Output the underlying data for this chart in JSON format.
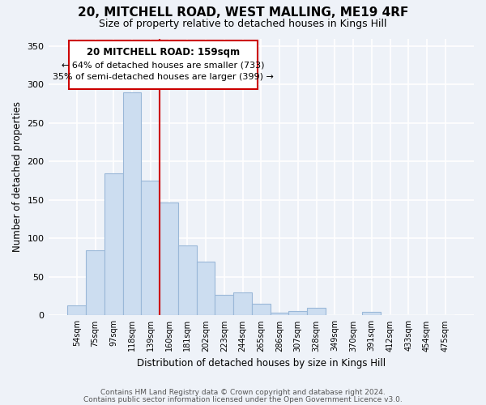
{
  "title": "20, MITCHELL ROAD, WEST MALLING, ME19 4RF",
  "subtitle": "Size of property relative to detached houses in Kings Hill",
  "xlabel": "Distribution of detached houses by size in Kings Hill",
  "ylabel": "Number of detached properties",
  "bar_labels": [
    "54sqm",
    "75sqm",
    "97sqm",
    "118sqm",
    "139sqm",
    "160sqm",
    "181sqm",
    "202sqm",
    "223sqm",
    "244sqm",
    "265sqm",
    "286sqm",
    "307sqm",
    "328sqm",
    "349sqm",
    "370sqm",
    "391sqm",
    "412sqm",
    "433sqm",
    "454sqm",
    "475sqm"
  ],
  "bar_values": [
    13,
    85,
    185,
    290,
    175,
    147,
    91,
    70,
    27,
    30,
    15,
    4,
    6,
    10,
    0,
    0,
    5,
    0,
    0,
    0,
    0
  ],
  "bar_color": "#ccddf0",
  "bar_edge_color": "#9ab8d8",
  "vline_color": "#cc0000",
  "annotation_title": "20 MITCHELL ROAD: 159sqm",
  "annotation_line1": "← 64% of detached houses are smaller (733)",
  "annotation_line2": "35% of semi-detached houses are larger (399) →",
  "annotation_box_color": "#ffffff",
  "annotation_box_edge": "#cc0000",
  "ylim": [
    0,
    360
  ],
  "yticks": [
    0,
    50,
    100,
    150,
    200,
    250,
    300,
    350
  ],
  "footer1": "Contains HM Land Registry data © Crown copyright and database right 2024.",
  "footer2": "Contains public sector information licensed under the Open Government Licence v3.0.",
  "bg_color": "#eef2f8"
}
